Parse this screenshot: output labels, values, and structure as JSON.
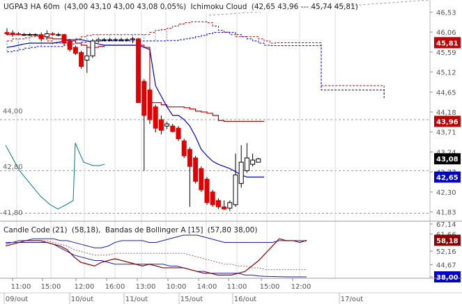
{
  "colors": {
    "up": "#ffffff",
    "down": "#e00000",
    "tenkan": "#c00000",
    "kijun": "#0000c8",
    "cloud_red": "#c00000",
    "cloud_blue": "#0000c8",
    "chikou": "#007a7a",
    "grid": "#999999",
    "cc_line": "#8b0000",
    "bb_line": "#1a1ab0"
  },
  "header": {
    "symbol": "UGPA3 HA 60m",
    "ohlc": "(43,00  43,10  43,00  43,08  0,05%)",
    "indicator": "Ichimoku Cloud",
    "indicator_values": "(42,65  43,96  ---  45,74  45,81)"
  },
  "sub_header": {
    "indicator1": "Candle Code (21)",
    "indicator1_value": "(58,18),",
    "indicator2": "Bandas de Bollinger A [15]",
    "indicator2_values": "(57,80  38,00)"
  },
  "price_axis": {
    "ticks": [
      "46,53",
      "46,06",
      "45,59",
      "45,12",
      "44,65",
      "44,18",
      "43,71",
      "43,24",
      "42,77",
      "42,30",
      "41,83"
    ],
    "left_labels": [
      "44,00",
      "42,80",
      "41,80"
    ]
  },
  "price_badges": [
    {
      "value": "45,81",
      "color": "#c00000"
    },
    {
      "value": "43,96",
      "color": "#c00000"
    },
    {
      "value": "43,08",
      "color": "#000000"
    },
    {
      "value": "42,65",
      "color": "#0000c8"
    }
  ],
  "lower_axis": {
    "ticks": [
      "67,14",
      "61,66",
      "52,16",
      "44,67",
      "38,00"
    ]
  },
  "lower_badges": [
    {
      "value": "58,18",
      "color": "#8b0000"
    },
    {
      "value": "38,00",
      "color": "#0000c8"
    }
  ],
  "time_axis": {
    "times": [
      "11:00",
      "15:00",
      "12:00",
      "16:00",
      "13:00",
      "10:00",
      "14:00",
      "11:00",
      "15:00",
      "12:00"
    ],
    "dates": [
      "09/out",
      "10/out",
      "11/out",
      "15/out",
      "16/out",
      "17/out"
    ]
  },
  "chart_data": {
    "type": "candlestick",
    "title": "UGPA3 HA 60m",
    "candles": [
      {
        "o": 46.05,
        "h": 46.15,
        "l": 45.98,
        "c": 46.02
      },
      {
        "o": 46.04,
        "h": 46.1,
        "l": 45.95,
        "c": 46.0
      },
      {
        "o": 46.02,
        "h": 46.06,
        "l": 45.98,
        "c": 46.0
      },
      {
        "o": 46.0,
        "h": 46.04,
        "l": 45.97,
        "c": 46.0
      },
      {
        "o": 46.0,
        "h": 46.04,
        "l": 45.97,
        "c": 46.0
      },
      {
        "o": 46.0,
        "h": 46.03,
        "l": 45.98,
        "c": 46.0
      },
      {
        "o": 46.0,
        "h": 46.05,
        "l": 45.85,
        "c": 45.9
      },
      {
        "o": 45.95,
        "h": 46.1,
        "l": 45.92,
        "c": 46.02
      },
      {
        "o": 46.02,
        "h": 46.06,
        "l": 45.97,
        "c": 46.0
      },
      {
        "o": 46.0,
        "h": 46.04,
        "l": 45.96,
        "c": 46.0
      },
      {
        "o": 46.0,
        "h": 46.02,
        "l": 45.75,
        "c": 45.8
      },
      {
        "o": 45.85,
        "h": 45.9,
        "l": 45.6,
        "c": 45.65
      },
      {
        "o": 45.7,
        "h": 45.74,
        "l": 45.52,
        "c": 45.56
      },
      {
        "o": 45.58,
        "h": 45.62,
        "l": 45.2,
        "c": 45.25
      },
      {
        "o": 45.4,
        "h": 45.7,
        "l": 45.1,
        "c": 45.5
      },
      {
        "o": 45.5,
        "h": 45.9,
        "l": 45.45,
        "c": 45.85
      },
      {
        "o": 45.85,
        "h": 45.92,
        "l": 45.8,
        "c": 45.88
      },
      {
        "o": 45.88,
        "h": 45.92,
        "l": 45.84,
        "c": 45.88
      },
      {
        "o": 45.88,
        "h": 45.92,
        "l": 45.84,
        "c": 45.88
      },
      {
        "o": 45.88,
        "h": 45.92,
        "l": 45.84,
        "c": 45.88
      },
      {
        "o": 45.88,
        "h": 45.92,
        "l": 45.84,
        "c": 45.88
      },
      {
        "o": 45.88,
        "h": 45.92,
        "l": 45.84,
        "c": 45.88
      },
      {
        "o": 45.88,
        "h": 45.95,
        "l": 45.8,
        "c": 45.9
      },
      {
        "o": 45.9,
        "h": 45.92,
        "l": 44.4,
        "c": 44.4
      },
      {
        "o": 44.9,
        "h": 44.95,
        "l": 42.8,
        "c": 44.1
      },
      {
        "o": 44.7,
        "h": 44.75,
        "l": 43.9,
        "c": 44.0
      },
      {
        "o": 44.3,
        "h": 44.35,
        "l": 43.7,
        "c": 43.8
      },
      {
        "o": 44.0,
        "h": 44.1,
        "l": 43.65,
        "c": 43.75
      },
      {
        "o": 43.85,
        "h": 43.95,
        "l": 43.78,
        "c": 43.9
      },
      {
        "o": 43.85,
        "h": 43.9,
        "l": 43.7,
        "c": 43.72
      },
      {
        "o": 43.8,
        "h": 43.85,
        "l": 43.5,
        "c": 43.55
      },
      {
        "o": 43.5,
        "h": 43.55,
        "l": 43.1,
        "c": 43.15
      },
      {
        "o": 43.3,
        "h": 43.35,
        "l": 41.95,
        "c": 42.9
      },
      {
        "o": 43.1,
        "h": 43.15,
        "l": 42.5,
        "c": 42.55
      },
      {
        "o": 42.85,
        "h": 42.9,
        "l": 42.3,
        "c": 42.35
      },
      {
        "o": 42.6,
        "h": 42.65,
        "l": 42.0,
        "c": 42.05
      },
      {
        "o": 42.3,
        "h": 42.35,
        "l": 41.95,
        "c": 42.0
      },
      {
        "o": 42.1,
        "h": 42.15,
        "l": 41.9,
        "c": 41.95
      },
      {
        "o": 41.95,
        "h": 42.1,
        "l": 41.88,
        "c": 41.9
      },
      {
        "o": 41.92,
        "h": 42.1,
        "l": 41.85,
        "c": 42.05
      },
      {
        "o": 42.0,
        "h": 43.2,
        "l": 41.95,
        "c": 42.7
      },
      {
        "o": 42.5,
        "h": 43.4,
        "l": 42.4,
        "c": 43.0
      },
      {
        "o": 42.8,
        "h": 43.45,
        "l": 42.75,
        "c": 43.1
      },
      {
        "o": 42.95,
        "h": 43.2,
        "l": 42.9,
        "c": 43.05
      },
      {
        "o": 43.0,
        "h": 43.1,
        "l": 43.0,
        "c": 43.08
      }
    ],
    "tenkan": [
      46.0,
      46.0,
      46.0,
      46.0,
      46.0,
      45.98,
      45.95,
      45.92,
      45.9,
      45.9,
      45.88,
      45.85,
      45.8,
      45.75,
      45.7,
      45.7,
      45.72,
      45.75,
      45.75,
      45.75,
      45.75,
      45.75,
      45.75,
      45.75,
      45.7,
      44.4,
      44.4,
      44.35,
      44.3,
      44.3,
      44.3,
      44.28,
      44.25,
      44.2,
      44.18,
      44.15,
      44.1,
      43.98,
      43.96,
      43.96,
      43.96,
      43.96,
      43.96,
      43.96,
      43.96,
      43.96
    ],
    "kijun": [
      45.7,
      45.72,
      45.75,
      45.78,
      45.8,
      45.8,
      45.8,
      45.8,
      45.8,
      45.82,
      45.85,
      45.88,
      45.88,
      45.88,
      45.85,
      45.82,
      45.78,
      45.75,
      45.75,
      45.75,
      45.75,
      45.75,
      45.75,
      45.75,
      45.7,
      45.65,
      44.8,
      44.55,
      44.3,
      44.1,
      44.1,
      44.0,
      43.85,
      43.6,
      43.3,
      43.15,
      43.02,
      42.95,
      42.9,
      42.85,
      42.78,
      42.7,
      42.65,
      42.65,
      42.65,
      42.65
    ],
    "cloud_a": [
      45.85,
      45.9,
      45.9,
      45.92,
      45.95,
      45.95,
      45.9,
      45.85,
      45.8,
      45.8,
      45.8,
      45.85,
      45.9,
      45.95,
      45.98,
      46.0,
      46.0,
      46.0,
      46.0,
      46.0,
      46.0,
      46.0,
      46.0,
      46.0,
      46.0,
      46.05,
      46.1,
      46.12,
      46.15,
      46.2,
      46.25,
      46.28,
      46.3,
      46.3,
      46.3,
      46.28,
      46.2,
      46.1,
      46.06,
      46.0,
      45.95,
      45.95,
      45.95,
      45.95,
      45.9,
      45.85,
      45.8,
      45.81,
      45.81,
      45.81,
      45.81,
      45.81,
      45.81,
      45.81,
      45.81,
      44.8,
      44.8,
      44.8,
      44.8,
      44.8,
      44.8,
      44.8,
      44.8,
      44.8,
      44.8,
      44.8,
      44.6
    ],
    "cloud_b": [
      45.6,
      45.62,
      45.65,
      45.68,
      45.7,
      45.72,
      45.72,
      45.72,
      45.72,
      45.72,
      45.75,
      45.78,
      45.8,
      45.82,
      45.85,
      45.85,
      45.85,
      45.85,
      45.85,
      45.85,
      45.85,
      45.85,
      45.85,
      45.85,
      45.85,
      45.85,
      45.85,
      45.85,
      45.86,
      45.86,
      45.88,
      45.9,
      45.92,
      45.95,
      45.98,
      46.02,
      46.05,
      46.05,
      46.05,
      46.05,
      46.0,
      45.95,
      45.9,
      45.85,
      45.8,
      45.75,
      45.74,
      45.74,
      45.74,
      45.74,
      45.74,
      45.74,
      45.74,
      45.74,
      45.74,
      44.7,
      44.7,
      44.7,
      44.7,
      44.7,
      44.7,
      44.7,
      44.7,
      44.7,
      44.7,
      44.7,
      44.5
    ],
    "chikou_start_index": 0,
    "chikou": [
      43.4,
      43.1,
      42.8,
      42.5,
      42.2,
      42.0,
      41.9,
      42.0,
      42.1,
      43.45,
      43.0,
      42.92,
      42.92,
      42.95
    ],
    "lower": {
      "ylim": [
        38.0,
        67.14
      ],
      "candle_code": [
        55,
        56,
        57,
        58,
        58,
        58,
        57,
        56,
        55,
        53,
        49,
        46,
        45,
        44,
        46,
        47,
        48,
        47,
        46,
        45,
        44,
        45,
        44,
        43,
        43,
        43,
        43,
        42,
        41,
        40,
        40,
        39,
        39,
        39,
        40,
        41,
        44,
        47,
        51,
        55,
        59,
        58,
        58,
        57,
        58.18
      ],
      "bb_upper": [
        56,
        57,
        58,
        58,
        59,
        59,
        59,
        59,
        58,
        58,
        57,
        56,
        55,
        54,
        54,
        55,
        57,
        58,
        58,
        58,
        58,
        57,
        57,
        58,
        59,
        60,
        61,
        61,
        61,
        60,
        59,
        58,
        57,
        57,
        57,
        57,
        57,
        57,
        57,
        57,
        58,
        58,
        58,
        58,
        57.8
      ],
      "bb_lower": [
        57,
        57,
        57,
        57,
        57,
        57,
        57,
        56,
        54,
        52,
        50,
        49,
        48,
        47,
        47,
        46,
        45,
        45,
        45,
        45,
        45,
        45,
        45,
        45,
        44,
        44,
        43,
        42,
        41,
        41,
        40,
        40,
        40,
        40,
        40,
        39,
        39,
        38.5,
        38.3,
        38.2,
        38.1,
        38,
        38,
        38,
        38
      ],
      "bb_mid": [
        56,
        57,
        57,
        58,
        58,
        58,
        58,
        57,
        56,
        55,
        53,
        52,
        51,
        50,
        50,
        50,
        51,
        51,
        51,
        51,
        51,
        51,
        51,
        51,
        51,
        51,
        51,
        50,
        49,
        48,
        47,
        46,
        45,
        45,
        44,
        44,
        43,
        43,
        42,
        42,
        42,
        42,
        42,
        42,
        42
      ]
    }
  }
}
